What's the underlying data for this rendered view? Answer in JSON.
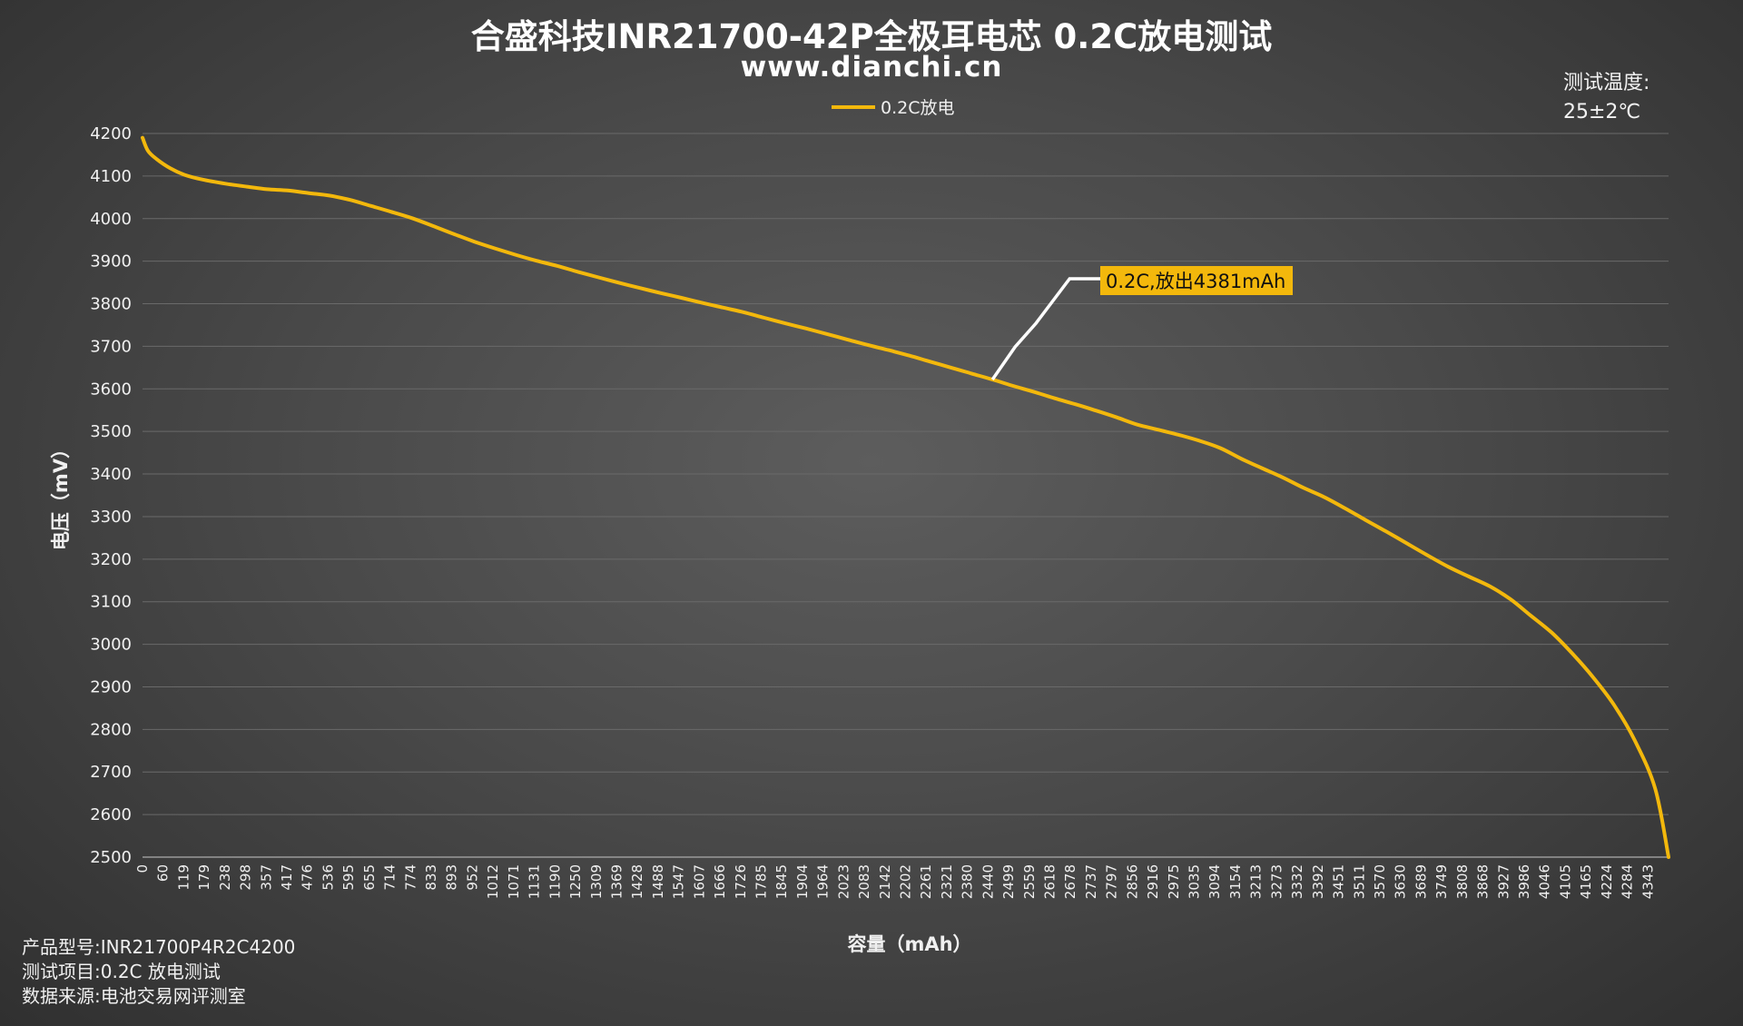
{
  "header": {
    "title": "合盛科技INR21700-42P全极耳电芯 0.2C放电测试",
    "subtitle": "www.dianchi.cn"
  },
  "temperature": {
    "label": "测试温度:",
    "value": "25±2℃"
  },
  "footer": {
    "rows": [
      {
        "label": "产品型号:",
        "value": "INR21700P4R2C4200"
      },
      {
        "label": "测试项目:",
        "value": "0.2C 放电测试"
      },
      {
        "label": "数据来源:",
        "value": "电池交易网评测室"
      }
    ]
  },
  "colors": {
    "series": "#F3B80C",
    "annotation_bg": "#F3B80C",
    "leader": "#ffffff",
    "grid": "#6a6a6a"
  },
  "chart_data": {
    "type": "line",
    "title": "合盛科技INR21700-42P全极耳电芯 0.2C放电测试",
    "xlabel": "容量（mAh）",
    "ylabel": "电压（mV）",
    "ylim": [
      2500,
      4200
    ],
    "yticks": [
      "2500",
      "2600",
      "2700",
      "2800",
      "2900",
      "3000",
      "3100",
      "3200",
      "3300",
      "3400",
      "3500",
      "3600",
      "3700",
      "3800",
      "3900",
      "4000",
      "4100",
      "4200"
    ],
    "xlim": [
      0,
      4381
    ],
    "xticks": [
      "0",
      "60",
      "119",
      "179",
      "238",
      "298",
      "357",
      "417",
      "476",
      "536",
      "595",
      "655",
      "714",
      "774",
      "833",
      "893",
      "952",
      "1012",
      "1071",
      "1131",
      "1190",
      "1250",
      "1309",
      "1369",
      "1428",
      "1488",
      "1547",
      "1607",
      "1666",
      "1726",
      "1785",
      "1845",
      "1904",
      "1964",
      "2023",
      "2083",
      "2142",
      "2202",
      "2261",
      "2321",
      "2380",
      "2440",
      "2499",
      "2559",
      "2618",
      "2678",
      "2737",
      "2797",
      "2856",
      "2916",
      "2975",
      "3035",
      "3094",
      "3154",
      "3213",
      "3273",
      "3332",
      "3392",
      "3451",
      "3511",
      "3570",
      "3630",
      "3689",
      "3749",
      "3808",
      "3868",
      "3927",
      "3986",
      "4046",
      "4105",
      "4165",
      "4224",
      "4284",
      "4343"
    ],
    "grid": true,
    "legend_position": "top-center",
    "series": [
      {
        "name": "0.2C放电",
        "x": [
          0,
          15,
          40,
          80,
          120,
          170,
          238,
          300,
          357,
          417,
          476,
          536,
          595,
          655,
          714,
          774,
          833,
          893,
          952,
          1012,
          1071,
          1131,
          1190,
          1250,
          1309,
          1369,
          1428,
          1488,
          1547,
          1607,
          1666,
          1726,
          1785,
          1845,
          1904,
          1964,
          2023,
          2083,
          2142,
          2202,
          2261,
          2321,
          2380,
          2440,
          2499,
          2559,
          2618,
          2678,
          2737,
          2797,
          2856,
          2916,
          2975,
          3035,
          3094,
          3154,
          3213,
          3273,
          3332,
          3392,
          3451,
          3511,
          3570,
          3630,
          3689,
          3749,
          3808,
          3868,
          3927,
          3986,
          4046,
          4105,
          4165,
          4224,
          4284,
          4343,
          4381
        ],
        "values": [
          4190,
          4160,
          4140,
          4118,
          4103,
          4092,
          4082,
          4075,
          4069,
          4066,
          4060,
          4054,
          4044,
          4030,
          4016,
          4001,
          3983,
          3964,
          3946,
          3930,
          3915,
          3901,
          3889,
          3875,
          3862,
          3849,
          3837,
          3825,
          3814,
          3802,
          3791,
          3780,
          3767,
          3754,
          3742,
          3729,
          3716,
          3703,
          3691,
          3678,
          3664,
          3650,
          3636,
          3622,
          3607,
          3593,
          3578,
          3564,
          3549,
          3533,
          3516,
          3504,
          3492,
          3478,
          3461,
          3436,
          3414,
          3392,
          3368,
          3346,
          3320,
          3292,
          3265,
          3237,
          3209,
          3182,
          3159,
          3136,
          3106,
          3067,
          3027,
          2978,
          2922,
          2858,
          2774,
          2660,
          2500
        ]
      }
    ],
    "annotations": [
      {
        "text": "0.2C,放出4381mAh",
        "x": 2440,
        "y": 3622
      }
    ]
  }
}
